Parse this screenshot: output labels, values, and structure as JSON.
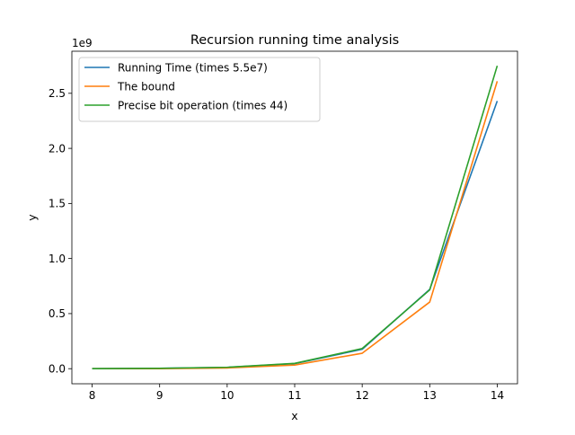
{
  "chart_data": {
    "type": "line",
    "title": "Recursion running time analysis",
    "xlabel": "x",
    "ylabel": "y",
    "y_offset_label": "1e9",
    "x": [
      8,
      9,
      10,
      11,
      12,
      13,
      14
    ],
    "xlim": [
      7.7,
      14.3
    ],
    "ylim": [
      -0.137,
      2.882
    ],
    "x_ticks": [
      8,
      9,
      10,
      11,
      12,
      13,
      14
    ],
    "x_tick_labels": [
      "8",
      "9",
      "10",
      "11",
      "12",
      "13",
      "14"
    ],
    "y_ticks": [
      0.0,
      0.5,
      1.0,
      1.5,
      2.0,
      2.5
    ],
    "y_tick_labels": [
      "0.0",
      "0.5",
      "1.0",
      "1.5",
      "2.0",
      "2.5"
    ],
    "grid": false,
    "legend_position": "top-left",
    "series": [
      {
        "name": "Running Time (times 5.5e7)",
        "color": "#1f77b4",
        "values": [
          0.0005,
          0.003,
          0.012,
          0.046,
          0.176,
          0.72,
          2.43
        ]
      },
      {
        "name": "The bound",
        "color": "#ff7f0e",
        "values": [
          0.0,
          0.0006,
          0.0066,
          0.033,
          0.14,
          0.605,
          2.61
        ]
      },
      {
        "name": "Precise bit operation (times 44)",
        "color": "#2ca02c",
        "values": [
          0.0006,
          0.0032,
          0.013,
          0.048,
          0.183,
          0.715,
          2.75
        ]
      }
    ]
  }
}
